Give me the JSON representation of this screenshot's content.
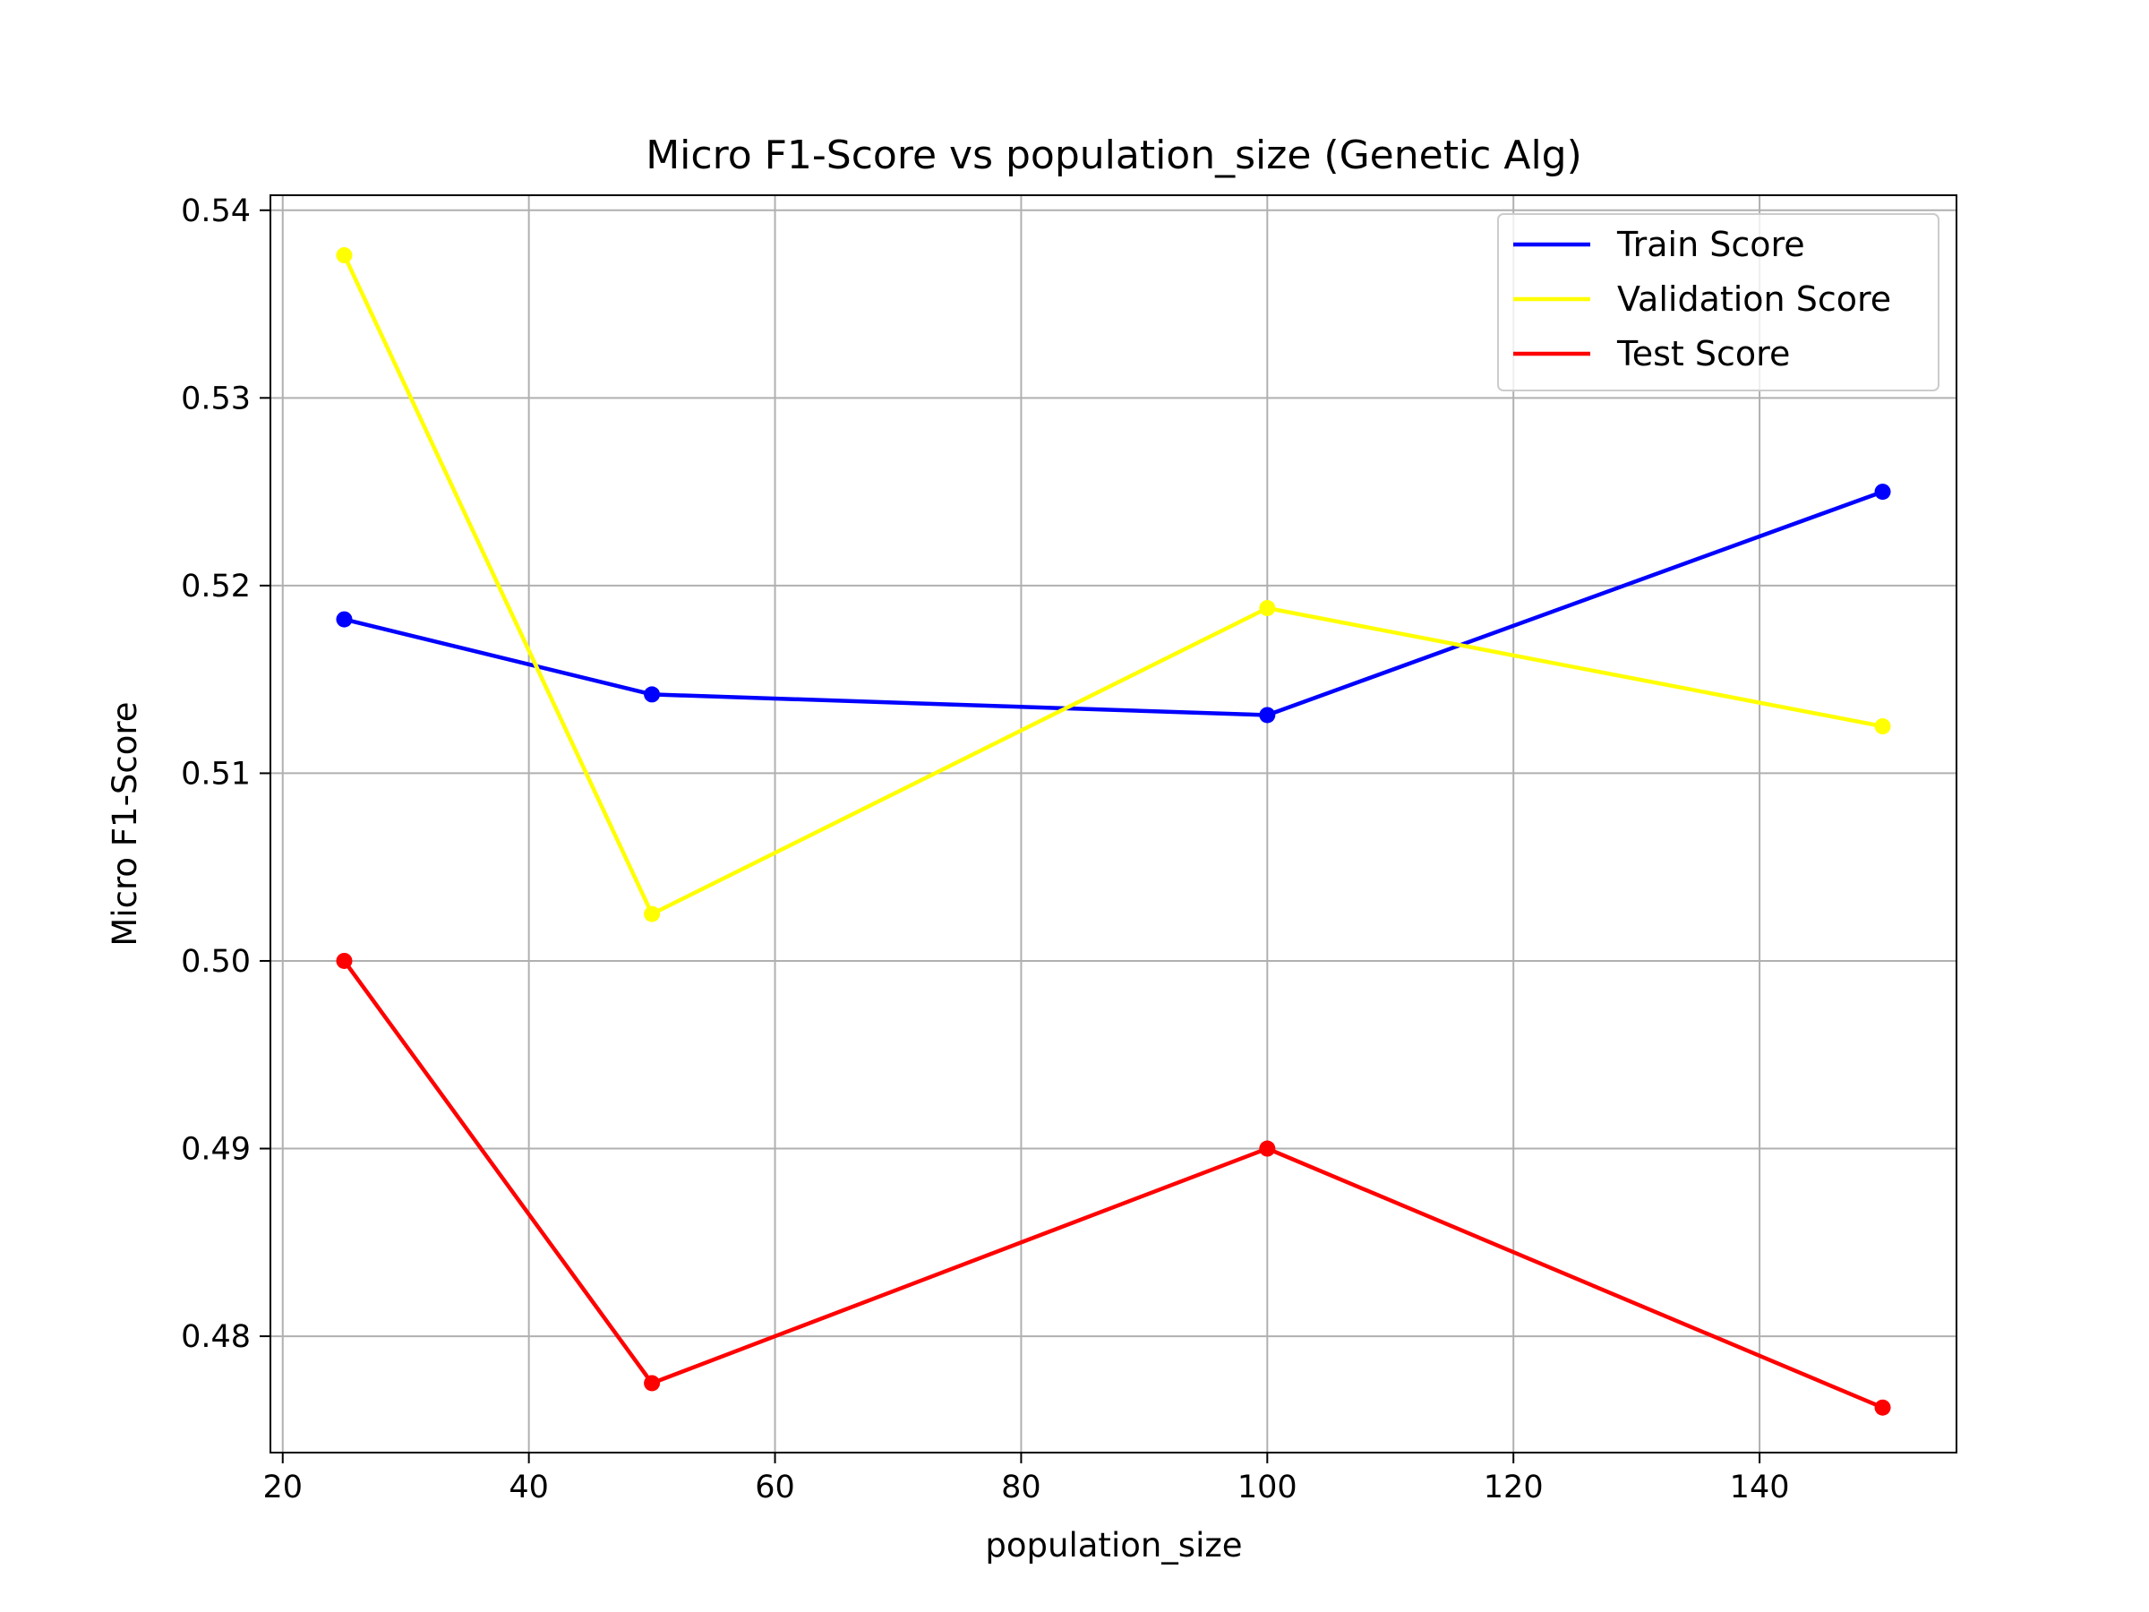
{
  "chart_data": {
    "type": "line",
    "title": "Micro F1-Score vs population_size (Genetic Alg)",
    "xlabel": "population_size",
    "ylabel": "Micro F1-Score",
    "x": [
      25,
      50,
      100,
      150
    ],
    "xlim": [
      19,
      156
    ],
    "ylim": [
      0.4738,
      0.5408
    ],
    "xticks": [
      20,
      40,
      60,
      80,
      100,
      120,
      140
    ],
    "yticks": [
      0.48,
      0.49,
      0.5,
      0.51,
      0.52,
      0.53,
      0.54
    ],
    "xtick_labels": [
      "20",
      "40",
      "60",
      "80",
      "100",
      "120",
      "140"
    ],
    "ytick_labels": [
      "0.48",
      "0.49",
      "0.50",
      "0.51",
      "0.52",
      "0.53",
      "0.54"
    ],
    "grid": true,
    "legend_position": "top-right",
    "series": [
      {
        "name": "Train Score",
        "color": "#0000ff",
        "values": [
          0.5182,
          0.5142,
          0.5131,
          0.525
        ]
      },
      {
        "name": "Validation Score",
        "color": "#ffff00",
        "values": [
          0.5376,
          0.5025,
          0.5188,
          0.5125
        ]
      },
      {
        "name": "Test Score",
        "color": "#ff0000",
        "values": [
          0.5,
          0.4775,
          0.49,
          0.4762
        ]
      }
    ]
  }
}
